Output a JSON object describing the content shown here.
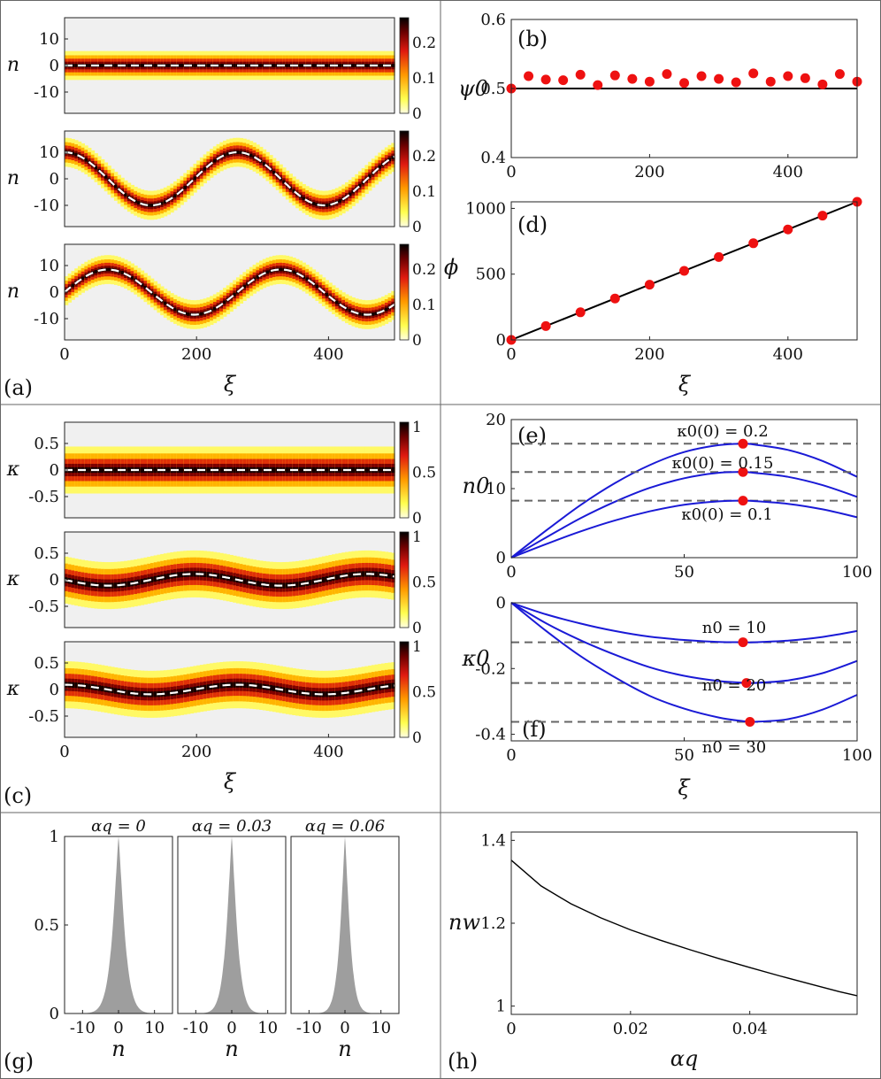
{
  "colors": {
    "heat_dark": "#1a0000",
    "heat_red": "#d01010",
    "heat_orange": "#ff7a00",
    "heat_yellow": "#ffff50",
    "bg_grey": "#f0f0f0",
    "dot_red": "#ee1111",
    "curve_blue": "#1a1ad6",
    "dash_grey": "#666666",
    "hist_grey": "#9e9e9e"
  },
  "panel_labels": [
    "(a)",
    "(b)",
    "(c)",
    "(d)",
    "(e)",
    "(f)",
    "(g)",
    "(h)"
  ],
  "chart_data": [
    {
      "id": "a",
      "type": "heatmap",
      "label": "(a)",
      "xlabel": "ξ",
      "ylabel": "n",
      "xlim": [
        0,
        500
      ],
      "ylim": [
        -18,
        18
      ],
      "xticks": [
        "0",
        "200",
        "400"
      ],
      "yticks": [
        "10",
        "0",
        "-10"
      ],
      "colorbar_max": 0.27,
      "colorbar_ticks": [
        [
          "0.2",
          "0.1",
          "0"
        ],
        [
          "0.2",
          "0.1",
          "0"
        ],
        [
          "0.2",
          "0.1",
          "0"
        ]
      ],
      "subplots": [
        {
          "amplitude": 0,
          "period": 262,
          "phase": 0
        },
        {
          "amplitude": 10,
          "period": 262,
          "phase": 1.571
        },
        {
          "amplitude": 8.5,
          "period": 262,
          "phase": 0
        }
      ],
      "width_sigma": 1.6
    },
    {
      "id": "b",
      "type": "scatter",
      "label": "(b)",
      "ylabel": "ψ0",
      "xlim": [
        0,
        500
      ],
      "ylim": [
        0.4,
        0.6
      ],
      "xticks": [
        "0",
        "200",
        "400"
      ],
      "yticks": [
        "0.6",
        "0.5",
        "0.4"
      ],
      "x": [
        0,
        25,
        50,
        75,
        100,
        125,
        150,
        175,
        200,
        225,
        250,
        275,
        300,
        325,
        350,
        375,
        400,
        425,
        450,
        475,
        500
      ],
      "y": [
        0.5,
        0.518,
        0.513,
        0.512,
        0.52,
        0.505,
        0.519,
        0.514,
        0.51,
        0.521,
        0.508,
        0.518,
        0.514,
        0.509,
        0.522,
        0.51,
        0.518,
        0.515,
        0.506,
        0.521,
        0.51
      ],
      "reference_line": 0.5
    },
    {
      "id": "d",
      "type": "scatter",
      "label": "(d)",
      "xlabel": "ξ",
      "ylabel": "ϕ",
      "xlim": [
        0,
        500
      ],
      "ylim": [
        0,
        1050
      ],
      "xticks": [
        "0",
        "200",
        "400"
      ],
      "yticks": [
        "1000",
        "500",
        "0"
      ],
      "x": [
        0,
        50,
        100,
        150,
        200,
        250,
        300,
        350,
        400,
        450,
        500
      ],
      "y": [
        0,
        105,
        210,
        315,
        420,
        525,
        630,
        735,
        840,
        945,
        1050
      ],
      "fit_line": [
        [
          0,
          0
        ],
        [
          500,
          1050
        ]
      ]
    },
    {
      "id": "c",
      "type": "heatmap",
      "label": "(c)",
      "xlabel": "ξ",
      "ylabel": "κ",
      "xlim": [
        0,
        500
      ],
      "ylim": [
        -0.9,
        0.9
      ],
      "xticks": [
        "0",
        "200",
        "400"
      ],
      "yticks": [
        "0.5",
        "0",
        "-0.5"
      ],
      "colorbar_max": 1.05,
      "colorbar_ticks": [
        [
          "1",
          "0.5",
          "0"
        ],
        [
          "1",
          "0.5",
          "0"
        ],
        [
          "1",
          "0.5",
          "0"
        ]
      ],
      "subplots": [
        {
          "amplitude": 0,
          "period": 262,
          "phase": 0
        },
        {
          "amplitude": 0.11,
          "period": 262,
          "phase": 3.14
        },
        {
          "amplitude": 0.09,
          "period": 262,
          "phase": 1.571
        }
      ],
      "width_sigma": 0.13
    },
    {
      "id": "e",
      "type": "line",
      "label": "(e)",
      "ylabel": "n0",
      "xlim": [
        0,
        100
      ],
      "ylim": [
        0,
        20
      ],
      "xticks": [
        "0",
        "50",
        "100"
      ],
      "yticks": [
        "20",
        "10",
        "0"
      ],
      "x": [
        0,
        10,
        20,
        30,
        40,
        50,
        60,
        67,
        70,
        80,
        90,
        100
      ],
      "series": [
        {
          "name": "κ0(0) = 0.2",
          "values": [
            0,
            3.9,
            7.6,
            10.8,
            13.4,
            15.3,
            16.3,
            16.5,
            16.4,
            15.6,
            14.0,
            11.7
          ],
          "max": [
            67,
            16.5
          ]
        },
        {
          "name": "κ0(0) = 0.15",
          "values": [
            0,
            2.9,
            5.7,
            8.1,
            10.1,
            11.5,
            12.3,
            12.4,
            12.3,
            11.7,
            10.5,
            8.8
          ],
          "max": [
            67,
            12.4
          ]
        },
        {
          "name": "κ0(0) = 0.1",
          "values": [
            0,
            1.95,
            3.8,
            5.4,
            6.7,
            7.65,
            8.15,
            8.25,
            8.2,
            7.8,
            7.0,
            5.85
          ],
          "max": [
            67,
            8.25
          ]
        }
      ]
    },
    {
      "id": "f",
      "type": "line",
      "label": "(f)",
      "ylabel": "κ0",
      "xlim": [
        0,
        100
      ],
      "ylim": [
        -0.42,
        0
      ],
      "xticks": [
        "0",
        "50",
        "100"
      ],
      "yticks": [
        "0",
        "-0.2",
        "-0.4"
      ],
      "x": [
        0,
        10,
        20,
        30,
        40,
        50,
        60,
        67,
        70,
        80,
        90,
        100
      ],
      "series": [
        {
          "name": "n0 = 10",
          "values": [
            0,
            -0.035,
            -0.063,
            -0.086,
            -0.103,
            -0.113,
            -0.119,
            -0.12,
            -0.12,
            -0.115,
            -0.104,
            -0.086
          ],
          "max": [
            67,
            -0.12
          ]
        },
        {
          "name": "n0 = 20",
          "values": [
            0,
            -0.062,
            -0.114,
            -0.158,
            -0.196,
            -0.222,
            -0.238,
            -0.243,
            -0.244,
            -0.236,
            -0.214,
            -0.177
          ],
          "max": [
            68,
            -0.244
          ]
        },
        {
          "name": "n0 = 30",
          "values": [
            0,
            -0.085,
            -0.162,
            -0.227,
            -0.283,
            -0.322,
            -0.349,
            -0.36,
            -0.362,
            -0.354,
            -0.325,
            -0.28
          ],
          "max": [
            69,
            -0.362
          ]
        }
      ]
    },
    {
      "id": "g",
      "type": "area",
      "label": "(g)",
      "xlabel": "n",
      "xlim": [
        -15,
        15
      ],
      "ylim": [
        0,
        1
      ],
      "xticks": [
        "-10",
        "0",
        "10"
      ],
      "yticks": [
        "1",
        "0.5",
        "0"
      ],
      "subplots": [
        {
          "title": "αq = 0",
          "decay": 0.9
        },
        {
          "title": "αq = 0.03",
          "decay": 1.0
        },
        {
          "title": "αq = 0.06",
          "decay": 1.1
        }
      ]
    },
    {
      "id": "h",
      "type": "line",
      "label": "(h)",
      "xlabel": "αq",
      "ylabel": "nw",
      "xlim": [
        0,
        0.058
      ],
      "ylim": [
        0.98,
        1.42
      ],
      "xticks": [
        "0",
        "0.02",
        "0.04"
      ],
      "yticks": [
        "1.4",
        "1.2",
        "1"
      ],
      "x": [
        0,
        0.005,
        0.01,
        0.015,
        0.02,
        0.025,
        0.03,
        0.035,
        0.04,
        0.045,
        0.05,
        0.055,
        0.058
      ],
      "y": [
        1.352,
        1.29,
        1.247,
        1.213,
        1.184,
        1.159,
        1.136,
        1.114,
        1.093,
        1.073,
        1.054,
        1.035,
        1.025
      ]
    }
  ]
}
